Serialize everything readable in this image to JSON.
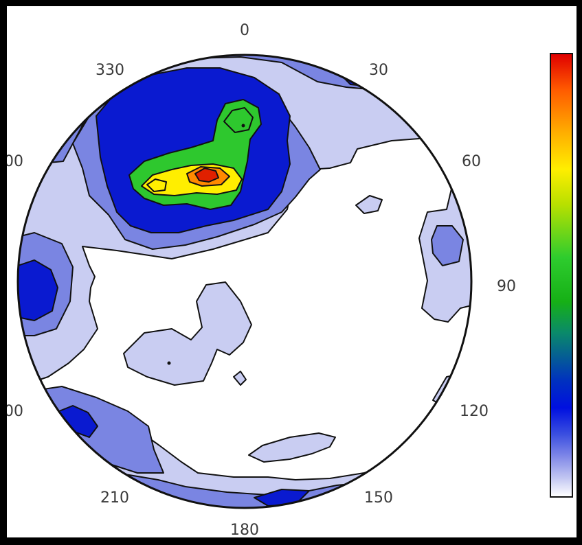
{
  "chart_data": {
    "type": "heatmap",
    "subtype": "polar stereonet density contour",
    "angle_labels": [
      "0",
      "30",
      "60",
      "90",
      "120",
      "150",
      "180",
      "210",
      "330"
    ],
    "partial_labels": [
      "00",
      "00"
    ],
    "colorbar": {
      "orientation": "vertical",
      "placement": "right",
      "colormap": "jet (blue-white low to red high)",
      "tick_labels": []
    },
    "peak": {
      "azimuth": 342,
      "color": "#e02000"
    },
    "secondary_peak": {
      "azimuth": 10,
      "color": "#33cc33"
    },
    "colors": {
      "low": "#ffffff",
      "light_blue": "#c9cdf2",
      "mid_blue": "#7a85e2",
      "dark_blue": "#0a1ad0",
      "green": "#2ec82e",
      "yellow": "#ffee00",
      "red": "#e02000"
    }
  }
}
